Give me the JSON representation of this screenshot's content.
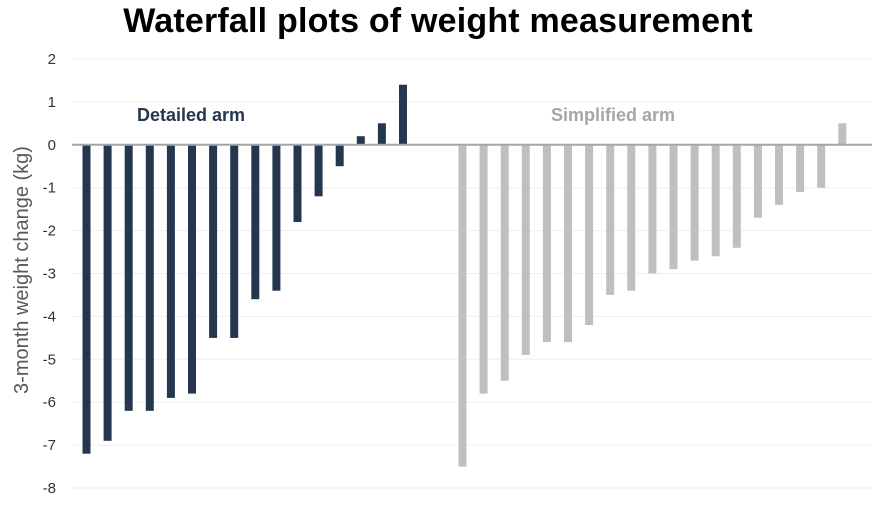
{
  "chart_data": {
    "type": "bar",
    "title": "Waterfall plots of weight measurement",
    "xlabel": "",
    "ylabel": "3-month weight change (kg)",
    "ylim": [
      -8,
      2
    ],
    "yticks": [
      "2",
      "1",
      "0",
      "-1",
      "-2",
      "-3",
      "-4",
      "-5",
      "-6",
      "-7",
      "-8"
    ],
    "grid": true,
    "series": [
      {
        "name": "Detailed arm",
        "color": "#24374f",
        "values": [
          -7.2,
          -6.9,
          -6.2,
          -6.2,
          -5.9,
          -5.8,
          -4.5,
          -4.5,
          -3.6,
          -3.4,
          -1.8,
          -1.2,
          -0.5,
          0.2,
          0.5,
          1.4
        ]
      },
      {
        "name": "Simplified arm",
        "color": "#bfbfbf",
        "values": [
          -7.5,
          -5.8,
          -5.5,
          -4.9,
          -4.6,
          -4.6,
          -4.2,
          -3.5,
          -3.4,
          -3.0,
          -2.9,
          -2.7,
          -2.6,
          -2.4,
          -1.7,
          -1.4,
          -1.1,
          -1.0,
          0.5
        ]
      }
    ]
  }
}
